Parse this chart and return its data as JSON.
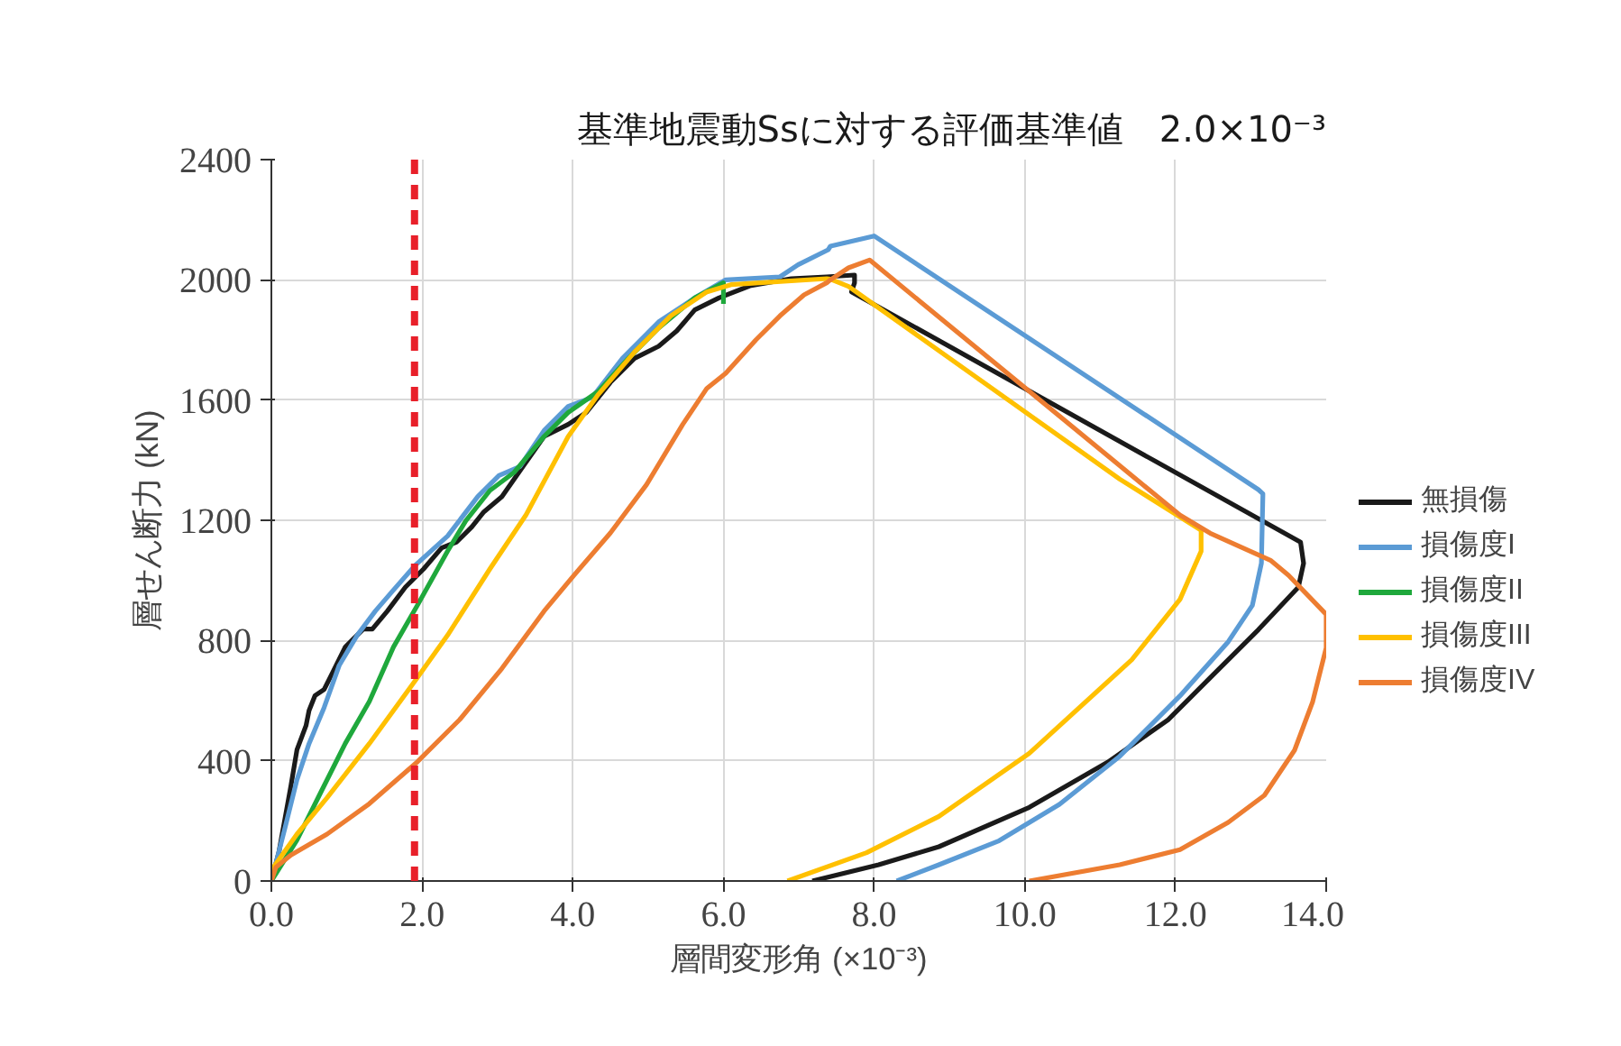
{
  "chart_data": {
    "type": "line",
    "title": "基準地震動Ssに対する評価基準値　2.0×10⁻³",
    "xlabel": "層間変形角 (×10⁻³)",
    "ylabel": "層せん断力 (kN)",
    "xlim": [
      0,
      14
    ],
    "ylim": [
      0,
      2400
    ],
    "xticks": [
      {
        "value": 0,
        "label": "0.0"
      },
      {
        "value": 2,
        "label": "2.0"
      },
      {
        "value": 4,
        "label": "4.0"
      },
      {
        "value": 6,
        "label": "6.0"
      },
      {
        "value": 8,
        "label": "8.0"
      },
      {
        "value": 10,
        "label": "10.0"
      },
      {
        "value": 12,
        "label": "12.0"
      },
      {
        "value": 14,
        "label": "14.0"
      }
    ],
    "yticks": [
      0,
      400,
      800,
      1200,
      1600,
      2000,
      2400
    ],
    "grid": true,
    "legend": "right",
    "marker": "none",
    "line_style": "solid",
    "ref_lines": [
      {
        "axis": "x",
        "value": 1.9,
        "color": "#e8202a",
        "line_style": "dashed"
      }
    ],
    "series": [
      {
        "name": "無損傷",
        "color": "#1a1a1a",
        "x": [
          0,
          0.1,
          0.26,
          0.34,
          0.46,
          0.5,
          0.58,
          0.7,
          0.82,
          0.98,
          1.22,
          1.34,
          1.54,
          1.78,
          2.02,
          2.26,
          2.46,
          2.66,
          2.82,
          3.06,
          3.34,
          3.62,
          3.94,
          4.18,
          4.5,
          4.82,
          5.14,
          5.38,
          5.62,
          5.94,
          6.35,
          6.9,
          7.37,
          7.74,
          7.74,
          7.7,
          13.66,
          13.7,
          13.63,
          13.1,
          12.46,
          11.9,
          11.1,
          10.06,
          8.86,
          8.06,
          7.18
        ],
        "values": [
          0,
          96,
          317,
          437,
          517,
          567,
          617,
          637,
          697,
          778,
          838,
          838,
          898,
          978,
          1038,
          1108,
          1128,
          1178,
          1228,
          1279,
          1379,
          1479,
          1519,
          1559,
          1659,
          1739,
          1779,
          1830,
          1900,
          1940,
          1980,
          2004,
          2010,
          2016,
          1990,
          1960,
          1127,
          1057,
          977,
          836,
          676,
          536,
          395,
          245,
          114,
          54,
          0
        ]
      },
      {
        "name": "損傷度I",
        "color": "#5b9bd5",
        "x": [
          0,
          0.18,
          0.34,
          0.5,
          0.7,
          0.9,
          1.14,
          1.38,
          1.62,
          1.9,
          2.34,
          2.74,
          3.02,
          3.3,
          3.62,
          3.94,
          4.26,
          4.66,
          5.14,
          5.62,
          6.03,
          6.75,
          6.99,
          7.39,
          7.42,
          8.0,
          13.1,
          13.16,
          13.14,
          13.02,
          12.7,
          12.06,
          11.26,
          10.46,
          9.66,
          8.86,
          8.3
        ],
        "values": [
          0,
          176,
          337,
          457,
          577,
          717,
          818,
          898,
          968,
          1048,
          1148,
          1279,
          1349,
          1379,
          1499,
          1579,
          1609,
          1739,
          1860,
          1940,
          2000,
          2010,
          2050,
          2100,
          2112,
          2146,
          1302,
          1288,
          1057,
          917,
          796,
          616,
          415,
          255,
          134,
          54,
          0
        ]
      },
      {
        "name": "損傷度II",
        "color": "#1fa83c",
        "x": [
          0,
          0.34,
          0.66,
          0.98,
          1.3,
          1.62,
          1.94,
          2.34,
          2.58,
          2.9,
          3.22,
          3.62,
          3.94,
          4.34,
          4.74,
          5.14,
          5.62,
          6.0,
          6.0
        ],
        "values": [
          0,
          136,
          297,
          457,
          597,
          778,
          918,
          1098,
          1198,
          1299,
          1359,
          1479,
          1559,
          1629,
          1739,
          1840,
          1940,
          1990,
          1920
        ]
      },
      {
        "name": "損傷度III",
        "color": "#ffc000",
        "x": [
          0,
          0.34,
          0.74,
          1.3,
          1.94,
          2.34,
          2.9,
          3.38,
          3.94,
          4.34,
          4.82,
          5.3,
          5.78,
          6.1,
          7.37,
          7.42,
          7.66,
          11.26,
          12.34,
          12.34,
          12.06,
          11.42,
          10.06,
          8.86,
          7.9,
          6.85
        ],
        "values": [
          36,
          156,
          277,
          457,
          677,
          818,
          1038,
          1218,
          1479,
          1619,
          1760,
          1880,
          1960,
          1984,
          2004,
          2002,
          1978,
          1337,
          1167,
          1097,
          937,
          736,
          425,
          215,
          94,
          0
        ]
      },
      {
        "name": "損傷度IV",
        "color": "#ed7d31",
        "x": [
          0,
          0.06,
          0.26,
          0.74,
          1.3,
          1.94,
          2.5,
          3.06,
          3.62,
          4.02,
          4.5,
          4.98,
          5.46,
          5.78,
          6.03,
          6.43,
          6.75,
          7.07,
          7.37,
          7.42,
          7.66,
          7.94,
          12.06,
          12.46,
          13.26,
          13.5,
          14.0,
          14.0,
          13.82,
          13.58,
          13.18,
          12.7,
          12.06,
          11.26,
          10.06
        ],
        "values": [
          0,
          46,
          86,
          156,
          257,
          397,
          537,
          707,
          898,
          1018,
          1158,
          1319,
          1519,
          1639,
          1689,
          1800,
          1880,
          1950,
          1990,
          2000,
          2040,
          2066,
          1217,
          1157,
          1067,
          1017,
          887,
          776,
          596,
          435,
          285,
          195,
          104,
          54,
          0
        ]
      }
    ]
  }
}
